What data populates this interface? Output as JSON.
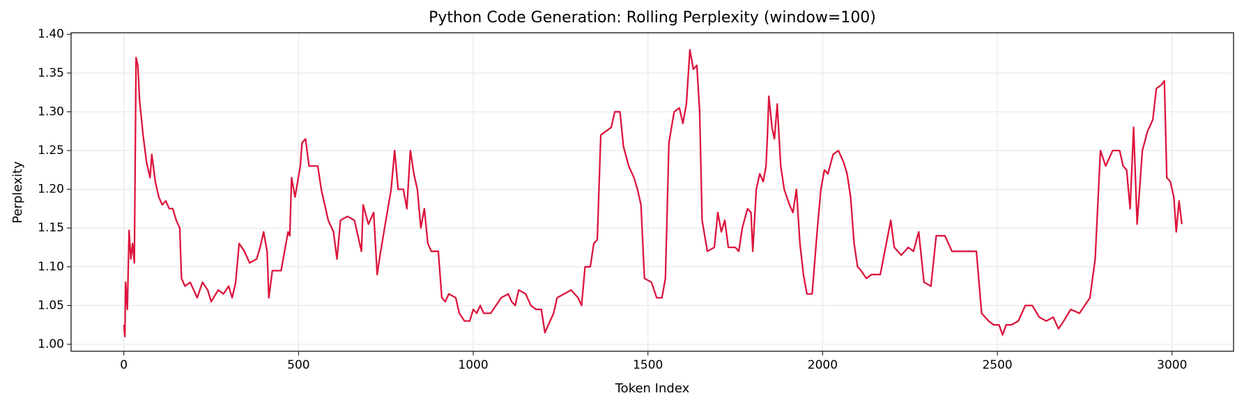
{
  "chart_data": {
    "type": "line",
    "title": "Python Code Generation: Rolling Perplexity (window=100)",
    "x_label": "Token Index",
    "y_label": "Perplexity",
    "color": "#dc143c",
    "grid": true,
    "xlim": [
      -151,
      3176
    ],
    "ylim": [
      0.991,
      1.402
    ],
    "xticks": [
      0,
      500,
      1000,
      1500,
      2000,
      2500,
      3000
    ],
    "yticks": [
      {
        "value": 1.0,
        "label": "1.00"
      },
      {
        "value": 1.05,
        "label": "1.05"
      },
      {
        "value": 1.1,
        "label": "1.10"
      },
      {
        "value": 1.15,
        "label": "1.15"
      },
      {
        "value": 1.2,
        "label": "1.20"
      },
      {
        "value": 1.25,
        "label": "1.25"
      },
      {
        "value": 1.3,
        "label": "1.30"
      },
      {
        "value": 1.35,
        "label": "1.35"
      },
      {
        "value": 1.4,
        "label": "1.40"
      }
    ],
    "x": [
      0,
      3,
      5,
      10,
      15,
      20,
      25,
      30,
      35,
      40,
      45,
      55,
      65,
      75,
      80,
      90,
      100,
      110,
      120,
      130,
      140,
      150,
      160,
      165,
      175,
      190,
      200,
      210,
      225,
      240,
      250,
      270,
      285,
      300,
      310,
      320,
      330,
      345,
      360,
      380,
      390,
      400,
      410,
      415,
      425,
      450,
      460,
      470,
      475,
      480,
      490,
      505,
      510,
      520,
      530,
      555,
      565,
      575,
      585,
      600,
      610,
      620,
      640,
      660,
      680,
      685,
      700,
      715,
      725,
      735,
      750,
      765,
      775,
      785,
      800,
      810,
      820,
      830,
      840,
      850,
      860,
      870,
      880,
      900,
      910,
      920,
      930,
      950,
      960,
      975,
      990,
      1000,
      1010,
      1020,
      1030,
      1050,
      1065,
      1080,
      1100,
      1110,
      1120,
      1130,
      1150,
      1165,
      1180,
      1195,
      1205,
      1215,
      1230,
      1240,
      1260,
      1280,
      1300,
      1310,
      1320,
      1335,
      1345,
      1355,
      1365,
      1380,
      1395,
      1405,
      1420,
      1430,
      1445,
      1460,
      1470,
      1480,
      1490,
      1510,
      1525,
      1540,
      1550,
      1560,
      1575,
      1590,
      1600,
      1610,
      1620,
      1630,
      1640,
      1648,
      1655,
      1670,
      1690,
      1700,
      1710,
      1720,
      1730,
      1750,
      1760,
      1770,
      1785,
      1795,
      1800,
      1810,
      1820,
      1830,
      1838,
      1842,
      1846,
      1855,
      1862,
      1870,
      1880,
      1890,
      1905,
      1915,
      1925,
      1935,
      1945,
      1955,
      1970,
      1985,
      1995,
      2005,
      2015,
      2030,
      2045,
      2060,
      2070,
      2080,
      2090,
      2100,
      2110,
      2125,
      2140,
      2165,
      2180,
      2195,
      2205,
      2225,
      2245,
      2260,
      2275,
      2290,
      2310,
      2325,
      2350,
      2370,
      2400,
      2440,
      2455,
      2475,
      2490,
      2505,
      2515,
      2525,
      2540,
      2560,
      2580,
      2600,
      2620,
      2640,
      2660,
      2675,
      2690,
      2710,
      2735,
      2750,
      2765,
      2780,
      2795,
      2810,
      2830,
      2850,
      2860,
      2870,
      2880,
      2890,
      2900,
      2915,
      2930,
      2945,
      2955,
      2970,
      2978,
      2985,
      2995,
      3005,
      3012,
      3020,
      3028
    ],
    "values": [
      1.025,
      1.01,
      1.08,
      1.045,
      1.147,
      1.11,
      1.13,
      1.105,
      1.37,
      1.36,
      1.315,
      1.27,
      1.235,
      1.215,
      1.245,
      1.21,
      1.19,
      1.18,
      1.185,
      1.175,
      1.175,
      1.16,
      1.15,
      1.085,
      1.075,
      1.08,
      1.07,
      1.06,
      1.08,
      1.07,
      1.055,
      1.07,
      1.065,
      1.075,
      1.06,
      1.08,
      1.13,
      1.12,
      1.105,
      1.11,
      1.125,
      1.145,
      1.12,
      1.06,
      1.095,
      1.095,
      1.12,
      1.145,
      1.14,
      1.215,
      1.19,
      1.23,
      1.26,
      1.265,
      1.23,
      1.23,
      1.2,
      1.18,
      1.16,
      1.145,
      1.11,
      1.16,
      1.165,
      1.16,
      1.12,
      1.18,
      1.155,
      1.17,
      1.09,
      1.12,
      1.16,
      1.2,
      1.25,
      1.2,
      1.2,
      1.175,
      1.25,
      1.22,
      1.2,
      1.15,
      1.175,
      1.13,
      1.12,
      1.12,
      1.06,
      1.055,
      1.065,
      1.06,
      1.04,
      1.03,
      1.03,
      1.045,
      1.04,
      1.05,
      1.04,
      1.04,
      1.05,
      1.06,
      1.065,
      1.055,
      1.05,
      1.07,
      1.065,
      1.05,
      1.045,
      1.045,
      1.015,
      1.025,
      1.04,
      1.06,
      1.065,
      1.07,
      1.06,
      1.05,
      1.1,
      1.1,
      1.13,
      1.135,
      1.27,
      1.275,
      1.28,
      1.3,
      1.3,
      1.255,
      1.23,
      1.215,
      1.2,
      1.18,
      1.085,
      1.08,
      1.06,
      1.06,
      1.085,
      1.26,
      1.3,
      1.305,
      1.285,
      1.31,
      1.38,
      1.355,
      1.36,
      1.3,
      1.16,
      1.12,
      1.125,
      1.17,
      1.145,
      1.16,
      1.125,
      1.125,
      1.12,
      1.15,
      1.175,
      1.17,
      1.12,
      1.2,
      1.22,
      1.21,
      1.23,
      1.27,
      1.32,
      1.28,
      1.265,
      1.31,
      1.23,
      1.2,
      1.18,
      1.17,
      1.2,
      1.13,
      1.09,
      1.065,
      1.065,
      1.15,
      1.2,
      1.225,
      1.22,
      1.245,
      1.25,
      1.235,
      1.22,
      1.19,
      1.13,
      1.1,
      1.095,
      1.085,
      1.09,
      1.09,
      1.125,
      1.16,
      1.125,
      1.115,
      1.125,
      1.12,
      1.145,
      1.08,
      1.075,
      1.14,
      1.14,
      1.12,
      1.12,
      1.12,
      1.04,
      1.03,
      1.025,
      1.025,
      1.012,
      1.025,
      1.025,
      1.03,
      1.05,
      1.05,
      1.035,
      1.03,
      1.035,
      1.02,
      1.03,
      1.045,
      1.04,
      1.05,
      1.06,
      1.11,
      1.25,
      1.23,
      1.25,
      1.25,
      1.23,
      1.225,
      1.175,
      1.28,
      1.155,
      1.25,
      1.275,
      1.29,
      1.33,
      1.335,
      1.34,
      1.215,
      1.21,
      1.19,
      1.145,
      1.185,
      1.155
    ]
  }
}
